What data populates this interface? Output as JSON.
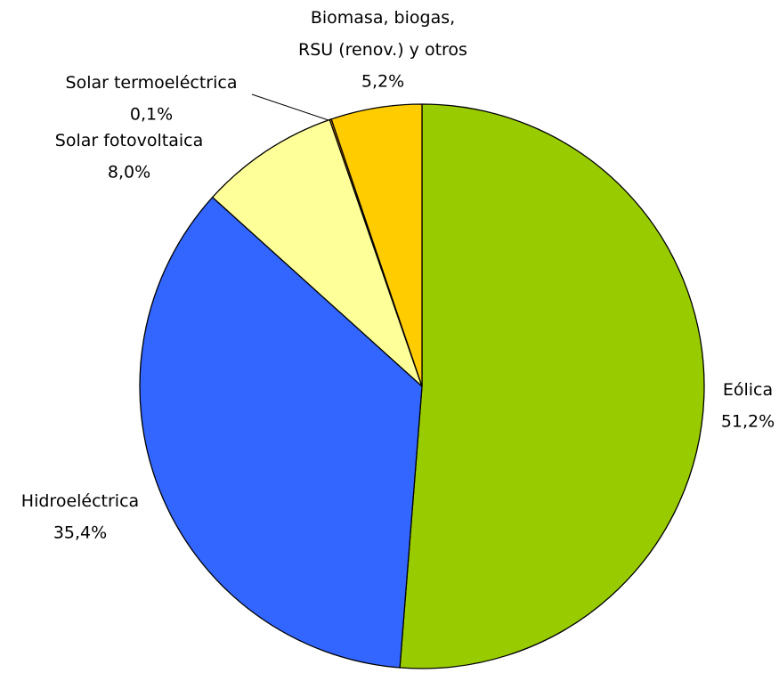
{
  "chart_data": {
    "type": "pie",
    "categories": [
      "Eólica",
      "Hidroeléctrica",
      "Solar fotovoltaica",
      "Solar termoeléctrica",
      "Biomasa, biogas,\nRSU (renov.) y otros"
    ],
    "values": [
      51.2,
      35.4,
      8.0,
      0.1,
      5.2
    ],
    "value_labels": [
      "51,2%",
      "35,4%",
      "8,0%",
      "0,1%",
      "5,2%"
    ],
    "colors": [
      "#99cc00",
      "#3366ff",
      "#ffff99",
      "#ff9900",
      "#ffcc00"
    ]
  }
}
